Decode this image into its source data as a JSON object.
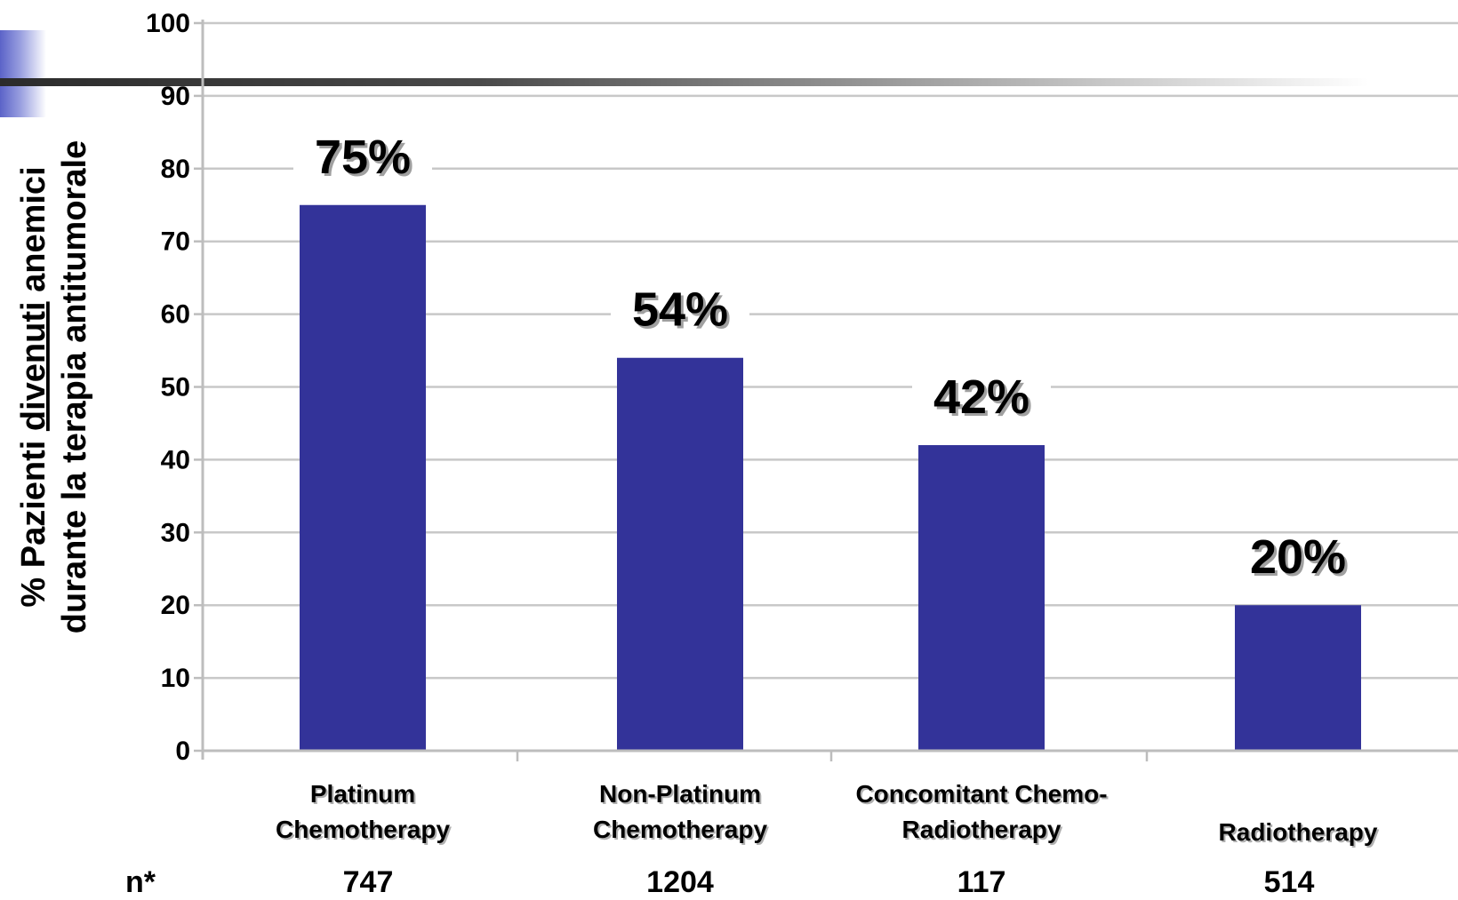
{
  "chart_data": {
    "type": "bar",
    "categories": [
      [
        "Platinum",
        "Chemotherapy"
      ],
      [
        "Non-Platinum",
        "Chemotherapy"
      ],
      [
        "Concomitant Chemo-",
        "Radiotherapy"
      ],
      [
        "Radiotherapy"
      ]
    ],
    "values": [
      75,
      54,
      42,
      20
    ],
    "value_labels": [
      "75%",
      "54%",
      "42%",
      "20%"
    ],
    "n_label": "n*",
    "n_values": [
      "747",
      "1204",
      "117",
      "514"
    ],
    "ylabel": {
      "line1_prefix": "%  Pazienti ",
      "line1_underlined": "divenuti",
      "line1_suffix": " anemici",
      "line2": "durante la terapia antitumorale"
    },
    "ylim": [
      0,
      100
    ],
    "yticks": [
      0,
      10,
      20,
      30,
      40,
      50,
      60,
      70,
      80,
      90,
      100
    ],
    "grid": true,
    "colors": {
      "bar": "#333399",
      "grid": "#c8c8c8",
      "axis": "#bdbdbd"
    }
  }
}
